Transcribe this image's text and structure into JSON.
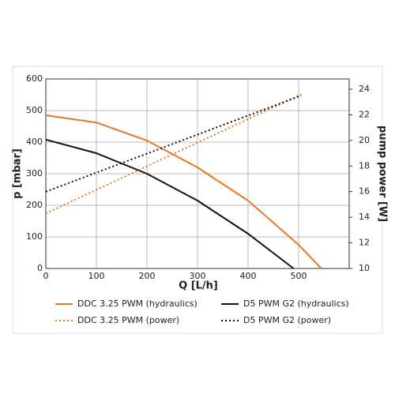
{
  "chart_data": {
    "type": "line",
    "xlabel": "Q [L/h]",
    "ylabel": "p [mbar]",
    "y2label": "pump power [W]",
    "xlim": [
      0,
      600
    ],
    "xticks": [
      0,
      100,
      200,
      300,
      400,
      500
    ],
    "ylim": [
      0,
      600
    ],
    "yticks": [
      0,
      100,
      200,
      300,
      400,
      500,
      600
    ],
    "y2lim": [
      10,
      24.8
    ],
    "y2ticks": [
      10,
      12,
      14,
      16,
      18,
      20,
      22,
      24
    ],
    "grid": true,
    "series": [
      {
        "name": "DDC 3.25 PWM (hydraulics)",
        "color": "#e87722",
        "dash": "solid",
        "axis": "y",
        "x": [
          0,
          100,
          200,
          300,
          400,
          500,
          545
        ],
        "values": [
          485,
          462,
          405,
          320,
          215,
          75,
          0
        ]
      },
      {
        "name": "D5 PWM G2 (hydraulics)",
        "color": "#111111",
        "dash": "solid",
        "axis": "y",
        "x": [
          0,
          100,
          200,
          300,
          400,
          490
        ],
        "values": [
          408,
          365,
          300,
          215,
          110,
          0
        ]
      },
      {
        "name": "DDC 3.25 PWM (power)",
        "color": "#e87722",
        "dash": "dotted",
        "axis": "y2",
        "x": [
          0,
          505
        ],
        "values": [
          14.3,
          23.6
        ]
      },
      {
        "name": "D5 PWM G2 (power)",
        "color": "#111111",
        "dash": "dotted",
        "axis": "y2",
        "x": [
          0,
          505
        ],
        "values": [
          16.0,
          23.5
        ]
      }
    ]
  }
}
